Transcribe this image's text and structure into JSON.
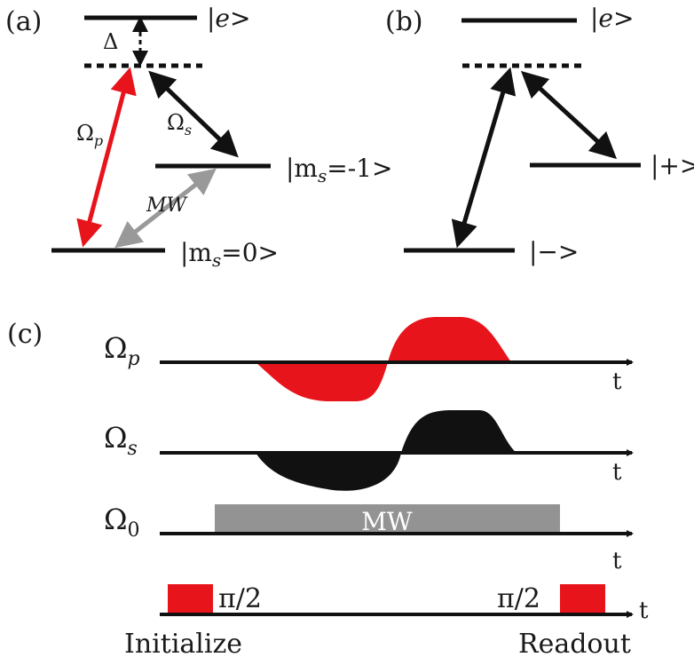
{
  "panel_a": {
    "label": "(a)",
    "level_e": "|e>",
    "delta": "Δ",
    "omega_p": "Ω",
    "omega_p_sub": "p",
    "omega_s": "Ω",
    "omega_s_sub": "s",
    "mw": "MW",
    "level_m1_prefix": "|m",
    "level_m1_sub": "s",
    "level_m1_suffix": "=-1>",
    "level_0_prefix": "|m",
    "level_0_sub": "s",
    "level_0_suffix": "=0>"
  },
  "panel_b": {
    "label": "(b)",
    "level_e": "|e>",
    "level_plus": "|+>",
    "level_minus": "|−>"
  },
  "panel_c": {
    "label": "(c)",
    "row_p_main": "Ω",
    "row_p_sub": "p",
    "row_s_main": "Ω",
    "row_s_sub": "s",
    "row_0_main": "Ω",
    "row_0_sub": "0",
    "mw_label": "MW",
    "axis_t": "t",
    "pi2_left": "π/2",
    "pi2_right": "π/2",
    "initialize": "Initialize",
    "readout": "Readout"
  },
  "colors": {
    "red": "#e8141b",
    "black": "#111111",
    "gray": "#999999",
    "mw_gray": "#939393"
  }
}
